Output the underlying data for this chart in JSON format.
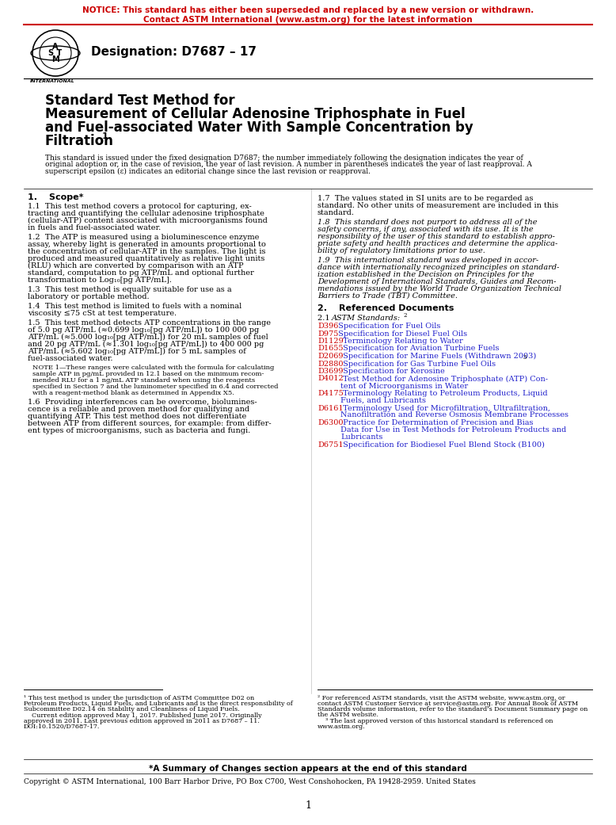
{
  "notice_line1": "NOTICE: This standard has either been superseded and replaced by a new version or withdrawn.",
  "notice_line2": "Contact ASTM International (www.astm.org) for the latest information",
  "notice_color": "#CC0000",
  "designation": "Designation: D7687 – 17",
  "title_line1": "Standard Test Method for",
  "title_line2": "Measurement of Cellular Adenosine Triphosphate in Fuel",
  "title_line3": "and Fuel-associated Water With Sample Concentration by",
  "title_line4": "Filtration",
  "title_superscript": "1",
  "section1_head": "1.  Scope*",
  "section2_head": "2.  Referenced Documents",
  "s21_italic": "ASTM Standards:",
  "s21_super": "2",
  "ref_links": [
    {
      "code": "D396",
      "text": " Specification for Fuel Oils"
    },
    {
      "code": "D975",
      "text": " Specification for Diesel Fuel Oils"
    },
    {
      "code": "D1129",
      "text": " Terminology Relating to Water"
    },
    {
      "code": "D1655",
      "text": " Specification for Aviation Turbine Fuels"
    },
    {
      "code": "D2069",
      "text": " Specification for Marine Fuels (Withdrawn 2003)",
      "super": "3"
    },
    {
      "code": "D2880",
      "text": " Specification for Gas Turbine Fuel Oils"
    },
    {
      "code": "D3699",
      "text": " Specification for Kerosine"
    },
    {
      "code": "D4012",
      "text": " Test Method for Adenosine Triphosphate (ATP) Con-\ntent of Microorganisms in Water"
    },
    {
      "code": "D4175",
      "text": " Terminology Relating to Petroleum Products, Liquid\nFuels, and Lubricants"
    },
    {
      "code": "D6161",
      "text": " Terminology Used for Microfiltration, Ultrafiltration,\nNanofiltration and Reverse Osmosis Membrane Processes"
    },
    {
      "code": "D6300",
      "text": " Practice for Determination of Precision and Bias\nData for Use in Test Methods for Petroleum Products and\nLubricants"
    },
    {
      "code": "D6751",
      "text": " Specification for Biodiesel Fuel Blend Stock (B100)"
    }
  ],
  "link_color": "#CC0000",
  "ref_text_color": "#2222CC",
  "summary_line": "*A Summary of Changes section appears at the end of this standard",
  "copyright": "Copyright © ASTM International, 100 Barr Harbor Drive, PO Box C700, West Conshohocken, PA 19428-2959. United States",
  "page_num": "1",
  "bg_color": "#ffffff",
  "text_color": "#000000"
}
